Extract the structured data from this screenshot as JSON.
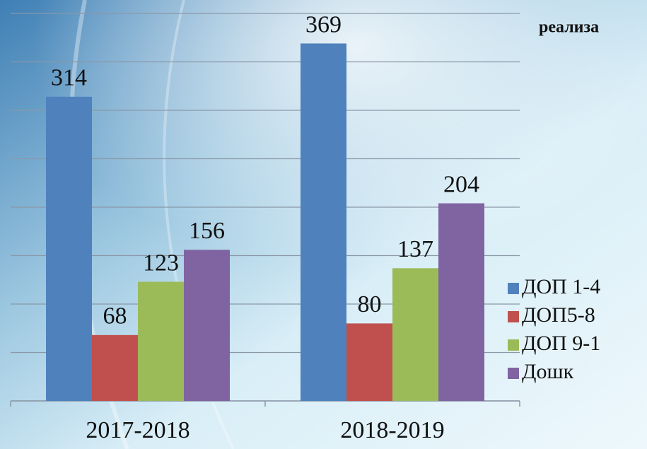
{
  "chart_data": {
    "type": "bar",
    "title": "реализа",
    "categories": [
      "2017-2018",
      "2018-2019"
    ],
    "series": [
      {
        "name": "ДОП 1-4",
        "color": "#4f81bd",
        "values": [
          314,
          369
        ]
      },
      {
        "name": "ДОП5-8",
        "color": "#c0504d",
        "values": [
          68,
          80
        ]
      },
      {
        "name": "ДОП 9-1",
        "color": "#9bbb59",
        "values": [
          123,
          137
        ]
      },
      {
        "name": "Дошк",
        "color": "#8064a2",
        "values": [
          156,
          204
        ]
      }
    ],
    "ylim": [
      0,
      400
    ],
    "yticks": [
      0,
      50,
      100,
      150,
      200,
      250,
      300,
      350,
      400
    ],
    "grid": true,
    "legend": "right"
  }
}
